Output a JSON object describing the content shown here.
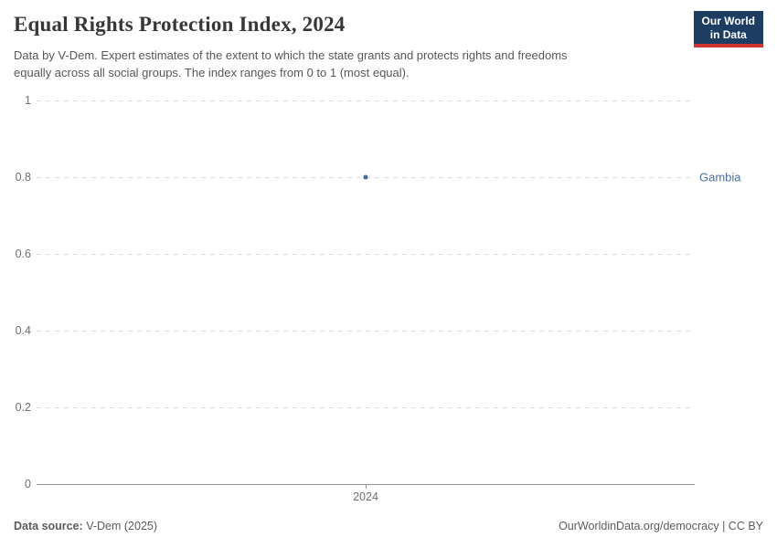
{
  "header": {
    "title": "Equal Rights Protection Index, 2024",
    "subtitle_lines": [
      "Data by V-Dem. Expert estimates of the extent to which the state grants and protects rights and freedoms",
      "equally across all social groups. The index ranges from 0 to 1 (most equal)."
    ],
    "logo": {
      "line1": "Our World",
      "line2": "in Data"
    }
  },
  "chart_data": {
    "type": "scatter",
    "title": "Equal Rights Protection Index, 2024",
    "x": [
      2024
    ],
    "series": [
      {
        "name": "Gambia",
        "values": [
          0.8
        ],
        "color": "#44679f",
        "label_color": "#4c6fa8"
      }
    ],
    "xlabel": "",
    "ylabel": "",
    "ylim": [
      0,
      1
    ],
    "y_ticks": [
      1,
      0.8,
      0.6,
      0.4,
      0.2,
      0
    ],
    "x_tick_labels": [
      "2024"
    ],
    "grid": "horizontal-dashed",
    "legend_position": "entity label right of plot",
    "colors": {
      "gridline": "#dcdcdc",
      "axis": "#969696",
      "tick_label": "#6e6e6e",
      "logo_bg": "#1d3d63",
      "logo_stripe": "#d0342c"
    }
  },
  "footer": {
    "source_label": "Data source:",
    "source_value": "V-Dem (2025)",
    "credit": "OurWorldinData.org/democracy | CC BY"
  }
}
